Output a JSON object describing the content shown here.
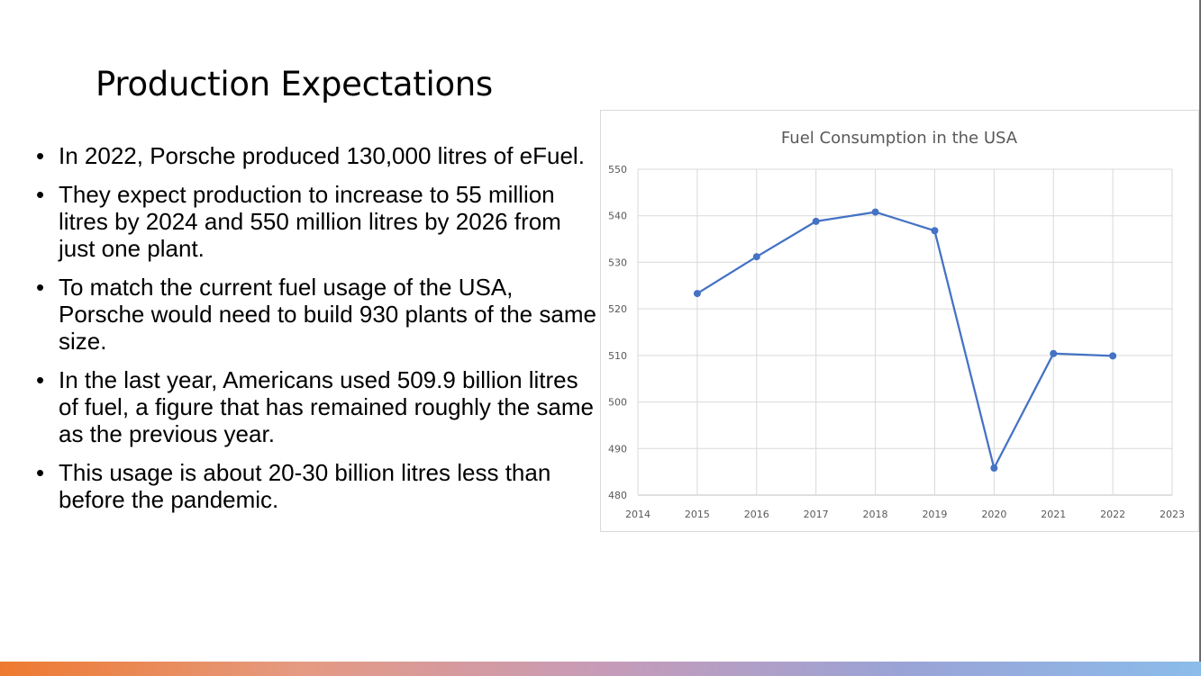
{
  "slide": {
    "title": "Production Expectations",
    "bullets": [
      "In 2022, Porsche produced 130,000 litres of eFuel.",
      "They expect production to increase to 55 million litres by 2024 and 550 million litres by 2026 from just one plant.",
      "To match the current fuel usage of the USA, Porsche would need to build 930 plants of the same size.",
      "In the last year, Americans used 509.9 billion litres of fuel, a figure that has remained roughly the same as the previous year.",
      "This usage is about 20-30 billion litres less than before the pandemic."
    ],
    "bullet_glyph": "•"
  },
  "chart_data": {
    "type": "line",
    "title": "Fuel Consumption in the USA",
    "x": [
      2015,
      2016,
      2017,
      2018,
      2019,
      2020,
      2021,
      2022
    ],
    "values": [
      523.3,
      531.2,
      538.8,
      540.8,
      536.8,
      485.8,
      510.4,
      509.9
    ],
    "xlim": [
      2014,
      2023
    ],
    "ylim": [
      480,
      550
    ],
    "x_ticks": [
      "2014",
      "2015",
      "2016",
      "2017",
      "2018",
      "2019",
      "2020",
      "2021",
      "2022",
      "2023"
    ],
    "y_ticks": [
      "480",
      "490",
      "500",
      "510",
      "520",
      "530",
      "540",
      "550"
    ],
    "grid": true,
    "legend": "none",
    "line_color": "#4472c4",
    "xlabel": "",
    "ylabel": ""
  }
}
